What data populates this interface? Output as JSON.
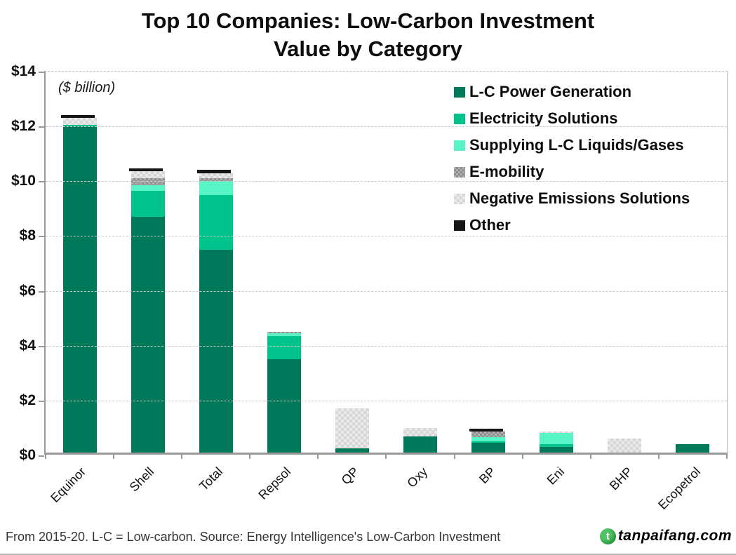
{
  "title": {
    "line1": "Top 10 Companies: Low-Carbon Investment",
    "line2": "Value by Category"
  },
  "plot_note": "($ billion)",
  "footer": {
    "source": "From 2015-20.  L-C = Low-carbon.  Source: Energy Intelligence's Low-Carbon Investment",
    "watermark_text": "tanpaifang.com",
    "watermark_color": "#1ea43c",
    "watermark_logo": "leaf-circle-icon"
  },
  "chart_data": {
    "type": "bar",
    "stacked": true,
    "title": "Top 10 Companies: Low-Carbon Investment Value by Category",
    "ylabel": "($ billion)",
    "ylim": [
      0,
      14
    ],
    "ytick_step": 2,
    "ytick_labels": [
      "$0",
      "$2",
      "$4",
      "$6",
      "$8",
      "$10",
      "$12",
      "$14"
    ],
    "grid": true,
    "legend_position": "top-right-inside",
    "categories": [
      "Equinor",
      "Shell",
      "Total",
      "Repsol",
      "QP",
      "Oxy",
      "BP",
      "Eni",
      "BHP",
      "Ecopetrol"
    ],
    "series": [
      {
        "name": "L-C Power Generation",
        "key": "lc-power-generation",
        "color": "#00795a",
        "pattern": "solid",
        "values": [
          11.9,
          8.6,
          7.4,
          3.4,
          0.15,
          0.6,
          0.35,
          0.2,
          0,
          0.3
        ]
      },
      {
        "name": "Electricity Solutions",
        "key": "electricity-solutions",
        "color": "#00c28b",
        "pattern": "solid",
        "values": [
          0.05,
          0.95,
          2.0,
          0.85,
          0,
          0,
          0.05,
          0.1,
          0,
          0
        ]
      },
      {
        "name": "Supplying L-C Liquids/Gases",
        "key": "supplying-lc-liquids-gases",
        "color": "#57f4c6",
        "pattern": "solid",
        "values": [
          0,
          0.2,
          0.5,
          0.1,
          0,
          0,
          0.15,
          0.4,
          0,
          0
        ]
      },
      {
        "name": "E-mobility",
        "key": "e-mobility",
        "color": "#9c9c9c",
        "pattern": "checker-dark",
        "values": [
          0,
          0.25,
          0.1,
          0.05,
          0,
          0,
          0.2,
          0,
          0,
          0
        ]
      },
      {
        "name": "Negative Emissions Solutions",
        "key": "negative-emissions-solutions",
        "color": "#dedede",
        "pattern": "checker-light",
        "values": [
          0.25,
          0.25,
          0.17,
          0,
          1.45,
          0.3,
          0,
          0.05,
          0.5,
          0
        ]
      },
      {
        "name": "Other",
        "key": "other",
        "color": "#161616",
        "pattern": "solid",
        "values": [
          0.1,
          0.1,
          0.13,
          0,
          0,
          0,
          0.1,
          0,
          0,
          0
        ]
      }
    ],
    "totals": [
      12.3,
      10.35,
      10.3,
      4.4,
      1.6,
      0.9,
      0.85,
      0.75,
      0.5,
      0.3
    ]
  }
}
